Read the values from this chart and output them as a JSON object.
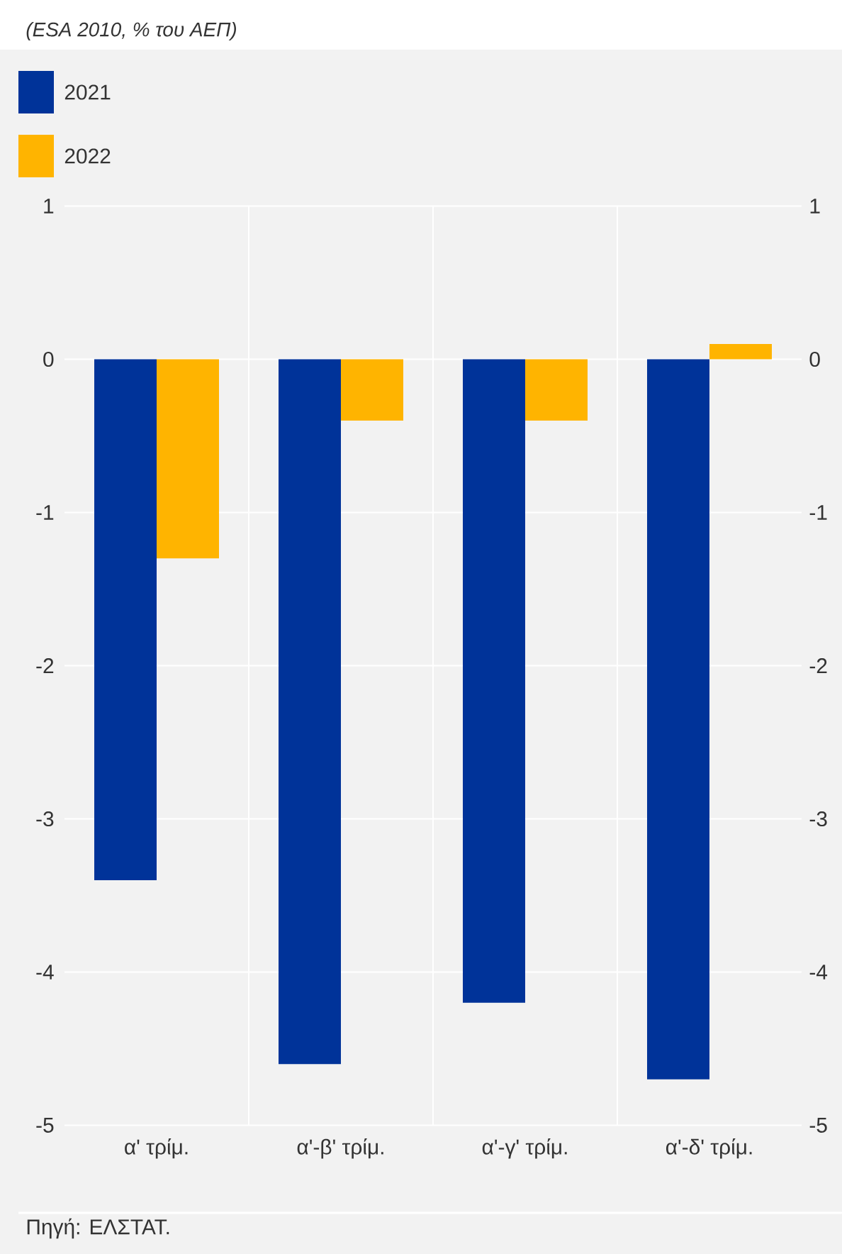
{
  "chart_data": {
    "type": "bar",
    "title": "(ESA 2010, % του ΑΕΠ)",
    "categories": [
      "α' τρίμ.",
      "α'-β' τρίμ.",
      "α'-γ' τρίμ.",
      "α'-δ' τρίμ."
    ],
    "series": [
      {
        "name": "2021",
        "color": "#003399",
        "values": [
          -3.4,
          -4.6,
          -4.2,
          -4.7
        ]
      },
      {
        "name": "2022",
        "color": "#ffb400",
        "values": [
          -1.3,
          -0.4,
          -0.4,
          0.1
        ]
      }
    ],
    "ylim": [
      -5,
      1
    ],
    "yticks": [
      -5,
      -4,
      -3,
      -2,
      -1,
      0,
      1
    ],
    "y2lim": [
      -5,
      1
    ],
    "y2ticks": [
      -5,
      -4,
      -3,
      -2,
      -1,
      0,
      1
    ],
    "grid": true,
    "legend": "top left",
    "annotations": [
      "Πηγή: ΕΛΣΤΑΤ."
    ]
  }
}
